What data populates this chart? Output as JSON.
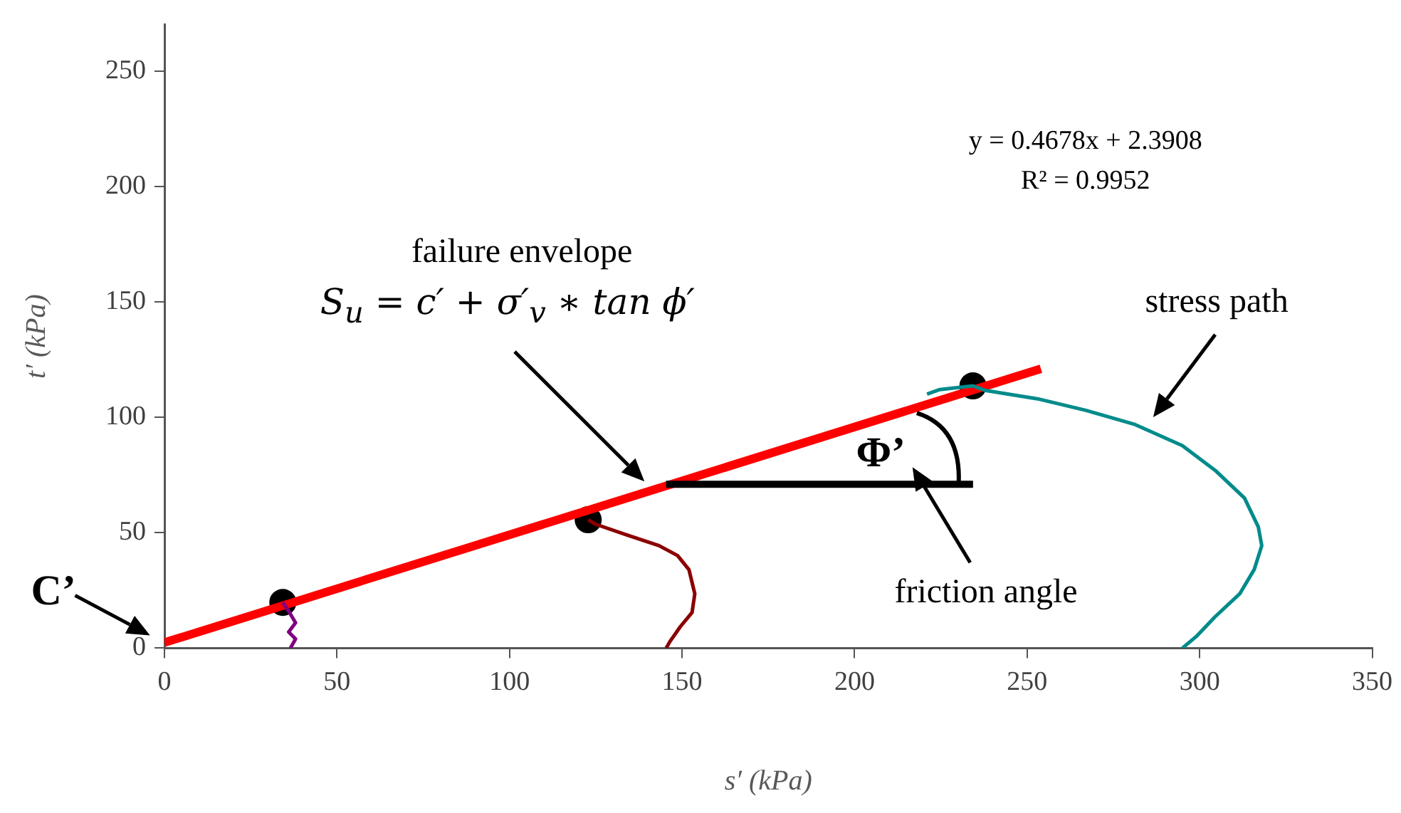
{
  "chart_data": {
    "type": "line",
    "xlabel": "s′ (kPa)",
    "ylabel": "t′ (kPa)",
    "xlim": [
      0,
      350
    ],
    "xticks": [
      0,
      50,
      100,
      150,
      200,
      250,
      300,
      350
    ],
    "ylim": [
      0,
      270
    ],
    "yticks": [
      0,
      50,
      100,
      150,
      200,
      250
    ],
    "grid": false,
    "legend": false,
    "marker": "none",
    "annotations": [
      "C’",
      "failure envelope",
      "S$_{u}$ = c′ + σ′$_{v}$ ∗ tan ϕ′",
      "stress path",
      "y = 0.4678x + 2.3908",
      "R² = 0.9952",
      "Φ’",
      "friction angle"
    ],
    "series": [
      {
        "color": "#800080",
        "x": [
          34.3,
          36,
          38,
          36,
          38,
          36.5
        ],
        "values": [
          19.8,
          16,
          11,
          7,
          4,
          0
        ]
      },
      {
        "color": "#8b0000",
        "x": [
          122.8,
          124.9,
          133.2,
          143.3,
          148.7,
          152,
          153.7,
          152.9,
          149.5,
          146.6,
          145.4
        ],
        "values": [
          55.6,
          53.7,
          49.4,
          44.4,
          40.1,
          34,
          23.5,
          15.4,
          9.3,
          3.1,
          0
        ]
      },
      {
        "color": "#008b8b",
        "x": [
          221,
          224.7,
          234.3,
          237.7,
          253,
          267,
          281,
          295,
          304.5,
          313,
          317,
          318,
          315.8,
          311.6,
          304.5,
          299,
          295
        ],
        "values": [
          110,
          112,
          113.6,
          111.7,
          108,
          103,
          97,
          87.7,
          77,
          65,
          52.5,
          44.4,
          34,
          23.5,
          13.6,
          5,
          0
        ]
      },
      {
        "type": "line",
        "color": "#ff0000",
        "x": [
          0,
          254
        ],
        "values": [
          2.4,
          121
        ]
      },
      {
        "type": "scatter",
        "marker": "circle",
        "color": "#000000",
        "x": [
          34.3,
          122.8,
          234.3
        ],
        "values": [
          19.8,
          55.6,
          113.6
        ]
      }
    ]
  }
}
